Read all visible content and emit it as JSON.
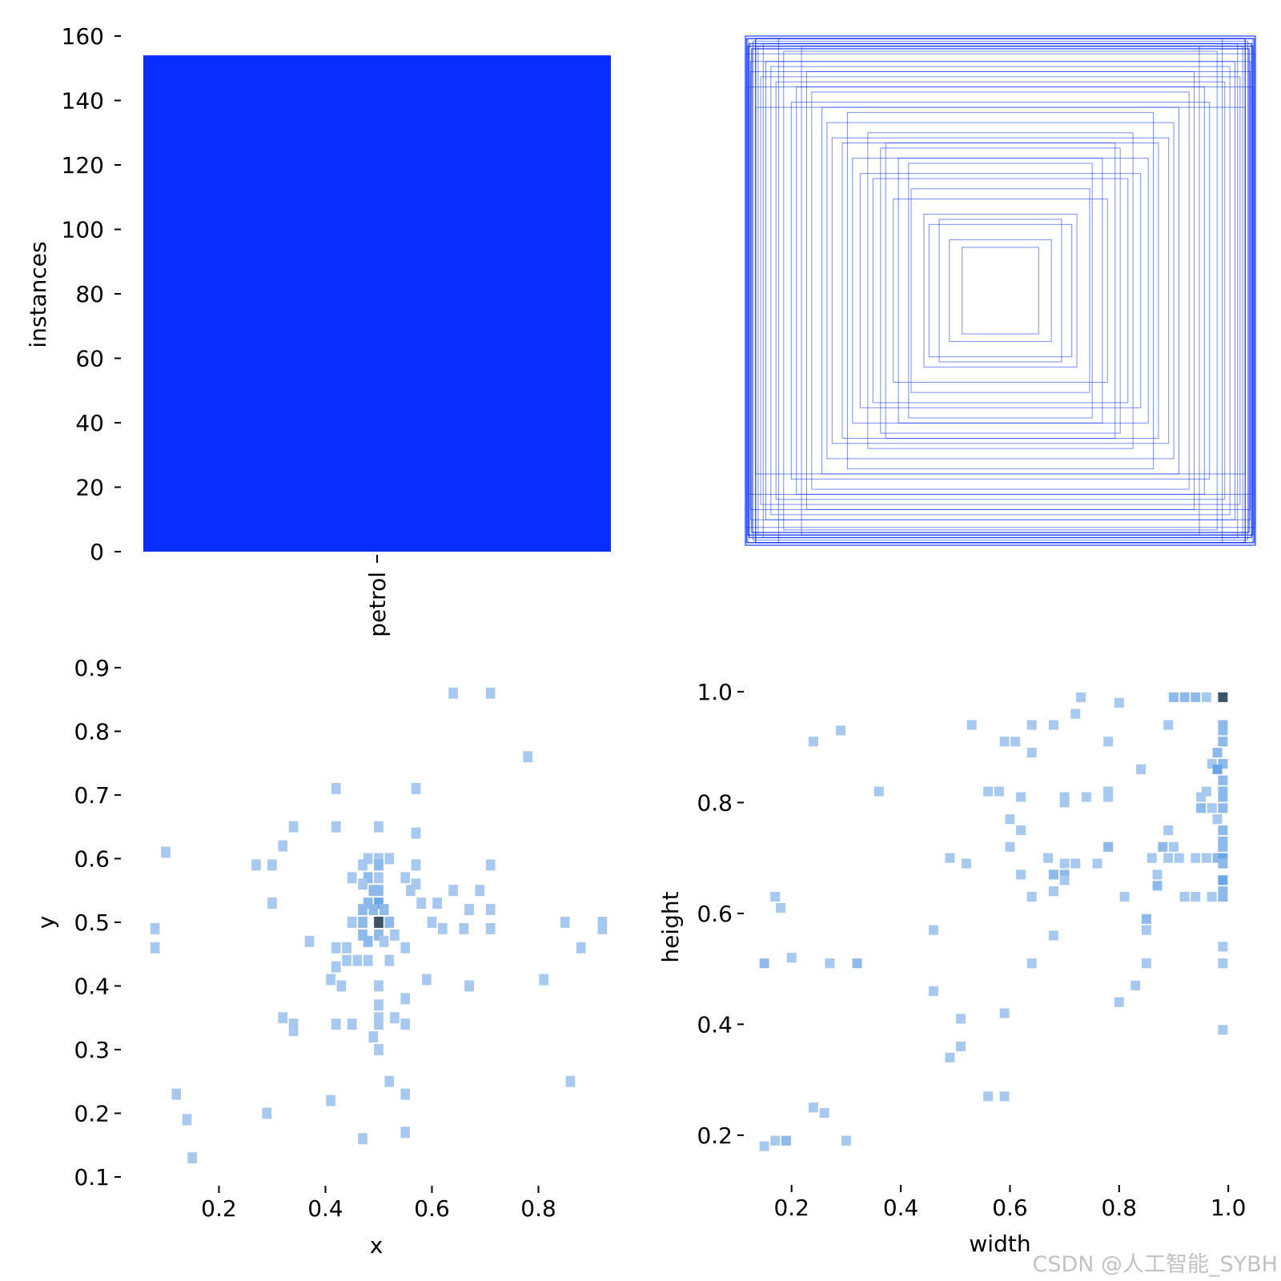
{
  "chart_data": [
    {
      "type": "bar",
      "categories": [
        "petrol"
      ],
      "values": [
        154
      ],
      "xlabel": "",
      "ylabel": "instances",
      "ylim": [
        0,
        160
      ],
      "yticks": [
        "0",
        "20",
        "40",
        "60",
        "80",
        "100",
        "120",
        "140",
        "160"
      ],
      "bar_color": "#0a2dff",
      "grid": false
    },
    {
      "type": "scatter",
      "description_shown": "overlaid normalized bounding-box rectangles centered at 0.5,0.5",
      "boxes_wh": [
        [
          0.99,
          0.99
        ],
        [
          0.97,
          0.98
        ],
        [
          0.95,
          0.96
        ],
        [
          1.0,
          0.93
        ],
        [
          0.92,
          0.9
        ],
        [
          0.98,
          0.86
        ],
        [
          0.9,
          0.88
        ],
        [
          0.85,
          0.94
        ],
        [
          0.88,
          0.82
        ],
        [
          0.8,
          0.8
        ],
        [
          0.76,
          0.86
        ],
        [
          0.82,
          0.74
        ],
        [
          0.7,
          0.72
        ],
        [
          0.68,
          0.66
        ],
        [
          0.66,
          0.6
        ],
        [
          0.6,
          0.7
        ],
        [
          0.58,
          0.52
        ],
        [
          0.55,
          0.46
        ],
        [
          0.5,
          0.44
        ],
        [
          0.47,
          0.56
        ],
        [
          0.4,
          0.52
        ],
        [
          0.35,
          0.4
        ],
        [
          0.3,
          0.3
        ],
        [
          0.28,
          0.26
        ],
        [
          0.2,
          0.2
        ],
        [
          0.15,
          0.17
        ],
        [
          0.42,
          0.36
        ],
        [
          0.62,
          0.58
        ],
        [
          0.74,
          0.78
        ],
        [
          0.96,
          0.72
        ],
        [
          0.99,
          0.8
        ],
        [
          0.93,
          0.97
        ],
        [
          0.87,
          0.99
        ],
        [
          0.78,
          0.96
        ],
        [
          0.52,
          0.62
        ],
        [
          0.45,
          0.58
        ],
        [
          0.36,
          0.5
        ],
        [
          0.24,
          0.28
        ],
        [
          0.98,
          0.9
        ],
        [
          0.94,
          0.84
        ]
      ],
      "line_color": "#0a2dff",
      "axes_visible": false
    },
    {
      "type": "heatmap",
      "xlabel": "x",
      "ylabel": "y",
      "xticks": [
        "0.2",
        "0.4",
        "0.6",
        "0.8"
      ],
      "yticks": [
        "0.1",
        "0.2",
        "0.3",
        "0.4",
        "0.5",
        "0.6",
        "0.7",
        "0.8",
        "0.9"
      ],
      "xlim": [
        0.055,
        0.93
      ],
      "ylim": [
        0.1,
        0.92
      ],
      "cell": 0.0175,
      "color_low": "#a7c8ef",
      "color_mid": "#6aa6e8",
      "color_peak": "#3c5468",
      "cells": [
        [
          0.64,
          0.86,
          1
        ],
        [
          0.71,
          0.86,
          1
        ],
        [
          0.78,
          0.76,
          1
        ],
        [
          0.42,
          0.71,
          1
        ],
        [
          0.57,
          0.71,
          1
        ],
        [
          0.34,
          0.65,
          1
        ],
        [
          0.42,
          0.65,
          1
        ],
        [
          0.5,
          0.65,
          1
        ],
        [
          0.57,
          0.64,
          1
        ],
        [
          0.32,
          0.62,
          1
        ],
        [
          0.1,
          0.61,
          1
        ],
        [
          0.48,
          0.6,
          1
        ],
        [
          0.5,
          0.6,
          1
        ],
        [
          0.52,
          0.6,
          1
        ],
        [
          0.27,
          0.59,
          1
        ],
        [
          0.3,
          0.59,
          1
        ],
        [
          0.47,
          0.59,
          1
        ],
        [
          0.5,
          0.59,
          2
        ],
        [
          0.57,
          0.59,
          1
        ],
        [
          0.71,
          0.59,
          1
        ],
        [
          0.45,
          0.57,
          1
        ],
        [
          0.48,
          0.57,
          2
        ],
        [
          0.5,
          0.57,
          1
        ],
        [
          0.55,
          0.57,
          1
        ],
        [
          0.57,
          0.56,
          1
        ],
        [
          0.47,
          0.56,
          1
        ],
        [
          0.49,
          0.55,
          2
        ],
        [
          0.5,
          0.55,
          2
        ],
        [
          0.64,
          0.55,
          1
        ],
        [
          0.69,
          0.55,
          1
        ],
        [
          0.56,
          0.55,
          1
        ],
        [
          0.3,
          0.53,
          1
        ],
        [
          0.48,
          0.53,
          2
        ],
        [
          0.5,
          0.53,
          3
        ],
        [
          0.61,
          0.53,
          1
        ],
        [
          0.58,
          0.53,
          1
        ],
        [
          0.47,
          0.52,
          2
        ],
        [
          0.49,
          0.52,
          2
        ],
        [
          0.51,
          0.52,
          2
        ],
        [
          0.67,
          0.52,
          1
        ],
        [
          0.71,
          0.52,
          1
        ],
        [
          0.45,
          0.5,
          1
        ],
        [
          0.47,
          0.5,
          2
        ],
        [
          0.5,
          0.5,
          6
        ],
        [
          0.52,
          0.5,
          2
        ],
        [
          0.6,
          0.5,
          1
        ],
        [
          0.85,
          0.5,
          1
        ],
        [
          0.92,
          0.5,
          1
        ],
        [
          0.08,
          0.49,
          1
        ],
        [
          0.47,
          0.48,
          2
        ],
        [
          0.5,
          0.48,
          2
        ],
        [
          0.53,
          0.48,
          1
        ],
        [
          0.62,
          0.49,
          1
        ],
        [
          0.66,
          0.49,
          1
        ],
        [
          0.71,
          0.49,
          1
        ],
        [
          0.92,
          0.49,
          1
        ],
        [
          0.37,
          0.47,
          1
        ],
        [
          0.48,
          0.47,
          2
        ],
        [
          0.51,
          0.47,
          1
        ],
        [
          0.08,
          0.46,
          1
        ],
        [
          0.42,
          0.46,
          1
        ],
        [
          0.44,
          0.46,
          1
        ],
        [
          0.55,
          0.46,
          1
        ],
        [
          0.88,
          0.46,
          1
        ],
        [
          0.44,
          0.44,
          1
        ],
        [
          0.46,
          0.44,
          1
        ],
        [
          0.48,
          0.44,
          1
        ],
        [
          0.52,
          0.44,
          1
        ],
        [
          0.42,
          0.43,
          1
        ],
        [
          0.41,
          0.41,
          1
        ],
        [
          0.59,
          0.41,
          1
        ],
        [
          0.81,
          0.41,
          1
        ],
        [
          0.43,
          0.4,
          1
        ],
        [
          0.5,
          0.4,
          1
        ],
        [
          0.67,
          0.4,
          1
        ],
        [
          0.55,
          0.38,
          1
        ],
        [
          0.5,
          0.37,
          1
        ],
        [
          0.32,
          0.35,
          1
        ],
        [
          0.5,
          0.35,
          1
        ],
        [
          0.53,
          0.35,
          1
        ],
        [
          0.34,
          0.34,
          1
        ],
        [
          0.42,
          0.34,
          1
        ],
        [
          0.45,
          0.34,
          1
        ],
        [
          0.5,
          0.34,
          1
        ],
        [
          0.55,
          0.34,
          1
        ],
        [
          0.34,
          0.33,
          1
        ],
        [
          0.49,
          0.32,
          1
        ],
        [
          0.5,
          0.3,
          1
        ],
        [
          0.52,
          0.25,
          1
        ],
        [
          0.86,
          0.25,
          1
        ],
        [
          0.12,
          0.23,
          1
        ],
        [
          0.55,
          0.23,
          1
        ],
        [
          0.41,
          0.22,
          1
        ],
        [
          0.29,
          0.2,
          1
        ],
        [
          0.14,
          0.19,
          1
        ],
        [
          0.55,
          0.17,
          1
        ],
        [
          0.47,
          0.16,
          1
        ],
        [
          0.15,
          0.13,
          1
        ]
      ]
    },
    {
      "type": "heatmap",
      "xlabel": "width",
      "ylabel": "height",
      "xticks": [
        "0.2",
        "0.4",
        "0.6",
        "0.8",
        "1.0"
      ],
      "yticks": [
        "0.2",
        "0.4",
        "0.6",
        "0.8",
        "1.0"
      ],
      "xlim": [
        0.13,
        1.01
      ],
      "ylim": [
        0.155,
        1.01
      ],
      "cell": 0.0175,
      "color_low": "#a7c8ef",
      "color_mid": "#6aa6e8",
      "color_peak": "#3c5468",
      "cells": [
        [
          0.73,
          0.99,
          1
        ],
        [
          0.9,
          0.99,
          2
        ],
        [
          0.92,
          0.99,
          2
        ],
        [
          0.94,
          0.99,
          2
        ],
        [
          0.96,
          0.99,
          1
        ],
        [
          0.99,
          0.99,
          6
        ],
        [
          0.8,
          0.98,
          1
        ],
        [
          0.72,
          0.96,
          1
        ],
        [
          0.29,
          0.93,
          1
        ],
        [
          0.53,
          0.94,
          1
        ],
        [
          0.64,
          0.94,
          1
        ],
        [
          0.68,
          0.94,
          1
        ],
        [
          0.89,
          0.94,
          1
        ],
        [
          0.99,
          0.94,
          2
        ],
        [
          0.99,
          0.93,
          2
        ],
        [
          0.24,
          0.91,
          1
        ],
        [
          0.59,
          0.91,
          1
        ],
        [
          0.61,
          0.91,
          1
        ],
        [
          0.78,
          0.91,
          1
        ],
        [
          0.99,
          0.91,
          2
        ],
        [
          0.64,
          0.89,
          1
        ],
        [
          0.98,
          0.89,
          2
        ],
        [
          0.99,
          0.87,
          2
        ],
        [
          0.97,
          0.87,
          1
        ],
        [
          0.84,
          0.86,
          1
        ],
        [
          0.98,
          0.86,
          3
        ],
        [
          0.99,
          0.84,
          2
        ],
        [
          0.36,
          0.82,
          1
        ],
        [
          0.56,
          0.82,
          1
        ],
        [
          0.58,
          0.82,
          1
        ],
        [
          0.78,
          0.82,
          1
        ],
        [
          0.96,
          0.82,
          1
        ],
        [
          0.99,
          0.82,
          2
        ],
        [
          0.62,
          0.81,
          1
        ],
        [
          0.7,
          0.81,
          1
        ],
        [
          0.74,
          0.81,
          1
        ],
        [
          0.78,
          0.81,
          1
        ],
        [
          0.95,
          0.81,
          1
        ],
        [
          0.99,
          0.81,
          2
        ],
        [
          0.7,
          0.8,
          1
        ],
        [
          0.95,
          0.79,
          2
        ],
        [
          0.97,
          0.79,
          1
        ],
        [
          0.99,
          0.79,
          2
        ],
        [
          0.6,
          0.77,
          1
        ],
        [
          0.98,
          0.77,
          1
        ],
        [
          0.62,
          0.75,
          1
        ],
        [
          0.89,
          0.75,
          1
        ],
        [
          0.99,
          0.75,
          2
        ],
        [
          0.99,
          0.73,
          2
        ],
        [
          0.78,
          0.72,
          2
        ],
        [
          0.6,
          0.72,
          1
        ],
        [
          0.88,
          0.72,
          2
        ],
        [
          0.9,
          0.72,
          1
        ],
        [
          0.99,
          0.72,
          2
        ],
        [
          0.49,
          0.7,
          1
        ],
        [
          0.67,
          0.7,
          1
        ],
        [
          0.86,
          0.7,
          1
        ],
        [
          0.89,
          0.7,
          1
        ],
        [
          0.91,
          0.7,
          1
        ],
        [
          0.94,
          0.7,
          1
        ],
        [
          0.96,
          0.7,
          1
        ],
        [
          0.98,
          0.7,
          2
        ],
        [
          0.99,
          0.7,
          3
        ],
        [
          0.52,
          0.69,
          1
        ],
        [
          0.7,
          0.69,
          1
        ],
        [
          0.72,
          0.69,
          1
        ],
        [
          0.76,
          0.69,
          1
        ],
        [
          0.99,
          0.69,
          2
        ],
        [
          0.62,
          0.67,
          1
        ],
        [
          0.68,
          0.67,
          2
        ],
        [
          0.7,
          0.67,
          2
        ],
        [
          0.87,
          0.67,
          1
        ],
        [
          0.99,
          0.66,
          3
        ],
        [
          0.7,
          0.66,
          1
        ],
        [
          0.87,
          0.65,
          2
        ],
        [
          0.68,
          0.64,
          1
        ],
        [
          0.99,
          0.64,
          2
        ],
        [
          0.17,
          0.63,
          1
        ],
        [
          0.64,
          0.63,
          1
        ],
        [
          0.81,
          0.63,
          1
        ],
        [
          0.92,
          0.63,
          1
        ],
        [
          0.94,
          0.63,
          1
        ],
        [
          0.97,
          0.63,
          1
        ],
        [
          0.99,
          0.63,
          2
        ],
        [
          0.18,
          0.61,
          1
        ],
        [
          0.85,
          0.59,
          2
        ],
        [
          0.46,
          0.57,
          1
        ],
        [
          0.85,
          0.57,
          1
        ],
        [
          0.68,
          0.56,
          1
        ],
        [
          0.99,
          0.54,
          1
        ],
        [
          0.2,
          0.52,
          1
        ],
        [
          0.15,
          0.51,
          2
        ],
        [
          0.27,
          0.51,
          1
        ],
        [
          0.32,
          0.51,
          2
        ],
        [
          0.64,
          0.51,
          1
        ],
        [
          0.85,
          0.51,
          1
        ],
        [
          0.99,
          0.51,
          1
        ],
        [
          0.83,
          0.47,
          1
        ],
        [
          0.46,
          0.46,
          1
        ],
        [
          0.8,
          0.44,
          1
        ],
        [
          0.59,
          0.42,
          1
        ],
        [
          0.51,
          0.41,
          1
        ],
        [
          0.99,
          0.39,
          1
        ],
        [
          0.51,
          0.36,
          1
        ],
        [
          0.49,
          0.34,
          1
        ],
        [
          0.56,
          0.27,
          1
        ],
        [
          0.59,
          0.27,
          1
        ],
        [
          0.24,
          0.25,
          1
        ],
        [
          0.26,
          0.24,
          1
        ],
        [
          0.17,
          0.19,
          1
        ],
        [
          0.19,
          0.19,
          2
        ],
        [
          0.3,
          0.19,
          1
        ],
        [
          0.15,
          0.18,
          1
        ]
      ]
    }
  ],
  "watermark": "CSDN @人工智能_SYBH"
}
